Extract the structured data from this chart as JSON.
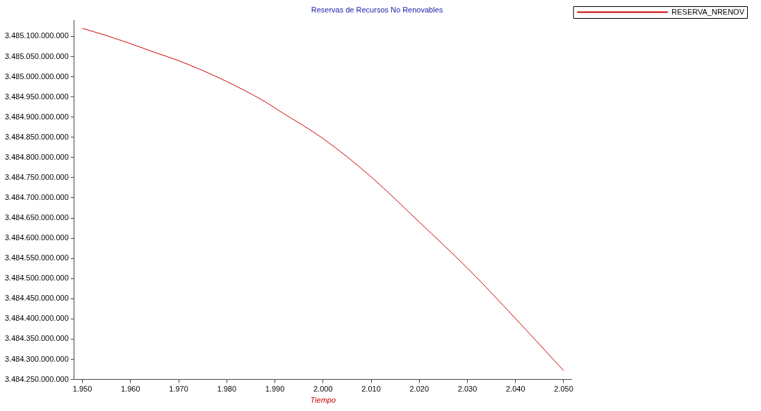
{
  "chart_data": {
    "type": "line",
    "title": "Reservas de Recursos No Renovables",
    "xlabel": "Tiempo",
    "x": [
      1950,
      1955,
      1960,
      1965.6,
      1970,
      1978.8,
      1988,
      1991,
      2000,
      2010,
      2020,
      2030,
      2040,
      2050
    ],
    "series": [
      {
        "name": "RESERVA_NRENOV",
        "color": "#cc0000",
        "values": [
          3485120000000,
          3485102000000,
          3485082000000,
          3485058000000,
          3485040000000,
          3484995000000,
          3484938000000,
          3484915000000,
          3484847000000,
          3484752000000,
          3484640000000,
          3484526000000,
          3484401000000,
          3484272000000
        ]
      }
    ],
    "xlim": [
      1948.3,
      2051.7
    ],
    "xticks": [
      {
        "value": 1950,
        "label": "1.950"
      },
      {
        "value": 1960,
        "label": "1.960"
      },
      {
        "value": 1970,
        "label": "1.970"
      },
      {
        "value": 1980,
        "label": "1.980"
      },
      {
        "value": 1990,
        "label": "1.990"
      },
      {
        "value": 2000,
        "label": "2.000"
      },
      {
        "value": 2010,
        "label": "2.010"
      },
      {
        "value": 2020,
        "label": "2.020"
      },
      {
        "value": 2030,
        "label": "2.030"
      },
      {
        "value": 2040,
        "label": "2.040"
      },
      {
        "value": 2050,
        "label": "2.050"
      }
    ],
    "ylim": [
      3484250000000,
      3485140000000
    ],
    "yticks": [
      {
        "value": 3484250000000,
        "label": "3.484.250.000.000"
      },
      {
        "value": 3484300000000,
        "label": "3.484.300.000.000"
      },
      {
        "value": 3484350000000,
        "label": "3.484.350.000.000"
      },
      {
        "value": 3484400000000,
        "label": "3.484.400.000.000"
      },
      {
        "value": 3484450000000,
        "label": "3.484.450.000.000"
      },
      {
        "value": 3484500000000,
        "label": "3.484.500.000.000"
      },
      {
        "value": 3484550000000,
        "label": "3.484.550.000.000"
      },
      {
        "value": 3484600000000,
        "label": "3.484.600.000.000"
      },
      {
        "value": 3484650000000,
        "label": "3.484.650.000.000"
      },
      {
        "value": 3484700000000,
        "label": "3.484.700.000.000"
      },
      {
        "value": 3484750000000,
        "label": "3.484.750.000.000"
      },
      {
        "value": 3484800000000,
        "label": "3.484.800.000.000"
      },
      {
        "value": 3484850000000,
        "label": "3.484.850.000.000"
      },
      {
        "value": 3484900000000,
        "label": "3.484.900.000.000"
      },
      {
        "value": 3484950000000,
        "label": "3.484.950.000.000"
      },
      {
        "value": 3485000000000,
        "label": "3.485.000.000.000"
      },
      {
        "value": 3485050000000,
        "label": "3.485.050.000.000"
      },
      {
        "value": 3485100000000,
        "label": "3.485.100.000.000"
      }
    ],
    "grid": false,
    "legend": "top right",
    "marker": "none",
    "line_style": "solid"
  }
}
